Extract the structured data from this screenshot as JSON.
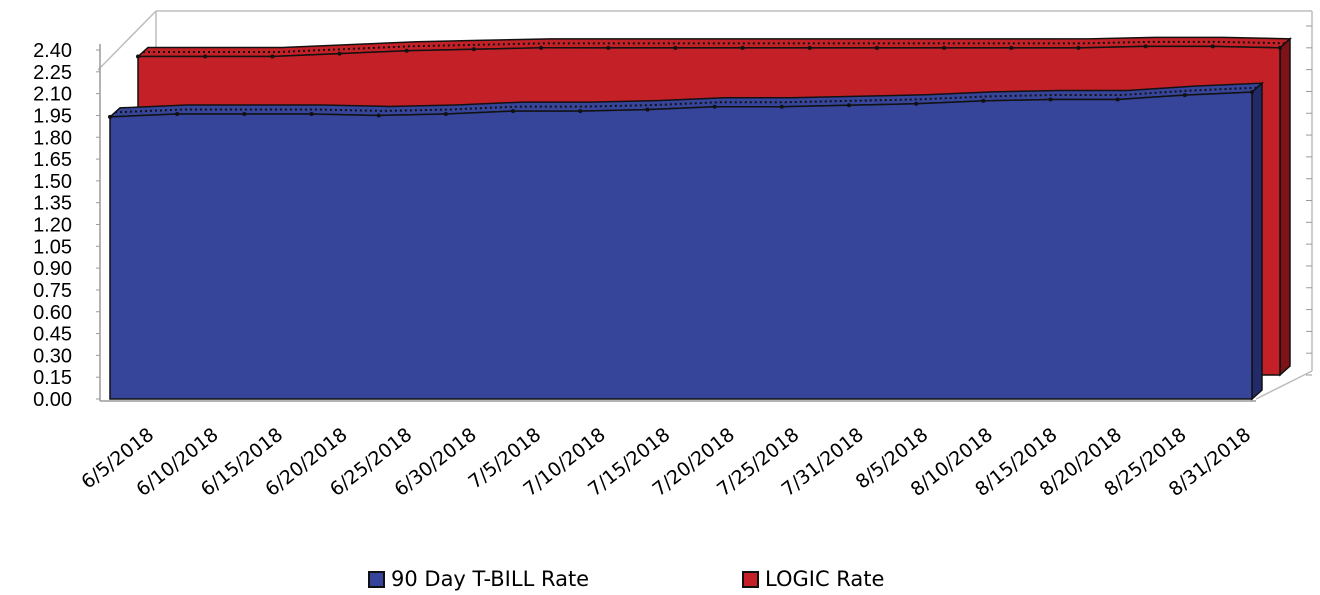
{
  "chart_data": {
    "type": "area",
    "view": "3d",
    "title": "",
    "xlabel": "",
    "ylabel": "",
    "ylim": [
      0,
      2.4
    ],
    "grid": false,
    "legend_position": "bottom",
    "y_ticks": [
      "0.00",
      "0.15",
      "0.30",
      "0.45",
      "0.60",
      "0.75",
      "0.90",
      "1.05",
      "1.20",
      "1.35",
      "1.50",
      "1.65",
      "1.80",
      "1.95",
      "2.10",
      "2.25",
      "2.40"
    ],
    "categories": [
      "6/5/2018",
      "6/10/2018",
      "6/15/2018",
      "6/20/2018",
      "6/25/2018",
      "6/30/2018",
      "7/5/2018",
      "7/10/2018",
      "7/15/2018",
      "7/20/2018",
      "7/25/2018",
      "7/31/2018",
      "8/5/2018",
      "8/10/2018",
      "8/15/2018",
      "8/20/2018",
      "8/25/2018",
      "8/31/2018"
    ],
    "series": [
      {
        "name": "90 Day T-BILL Rate",
        "color": "#36449a",
        "values": [
          1.94,
          1.96,
          1.96,
          1.96,
          1.95,
          1.96,
          1.98,
          1.98,
          1.99,
          2.01,
          2.01,
          2.02,
          2.03,
          2.05,
          2.06,
          2.06,
          2.09,
          2.11
        ]
      },
      {
        "name": "LOGIC Rate",
        "color": "#c32127",
        "values": [
          2.19,
          2.19,
          2.19,
          2.21,
          2.23,
          2.24,
          2.25,
          2.25,
          2.25,
          2.25,
          2.25,
          2.25,
          2.25,
          2.25,
          2.25,
          2.26,
          2.26,
          2.25
        ]
      }
    ]
  }
}
